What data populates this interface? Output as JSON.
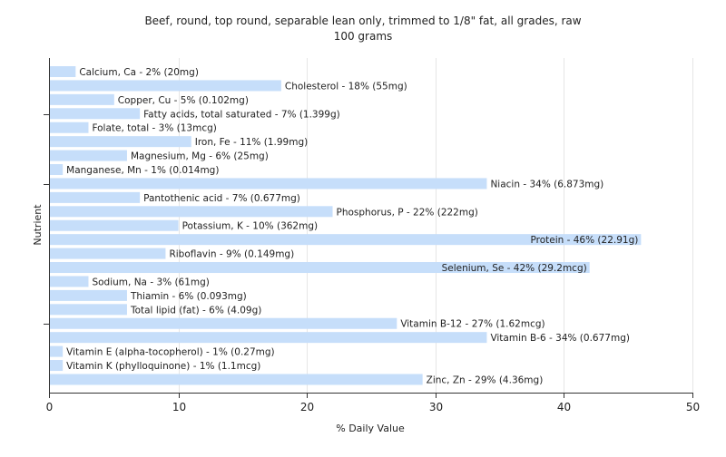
{
  "chart_data": {
    "type": "bar",
    "orientation": "horizontal",
    "title": "Beef, round, top round, separable lean only, trimmed to 1/8\" fat, all grades, raw",
    "subtitle": "100 grams",
    "xlabel": "% Daily Value",
    "ylabel": "Nutrient",
    "xlim": [
      0,
      50
    ],
    "x_ticks": [
      0,
      10,
      20,
      30,
      40,
      50
    ],
    "grid": true,
    "bar_color": "#c6defa",
    "categories": [
      "Calcium, Ca",
      "Cholesterol",
      "Copper, Cu",
      "Fatty acids, total saturated",
      "Folate, total",
      "Iron, Fe",
      "Magnesium, Mg",
      "Manganese, Mn",
      "Niacin",
      "Pantothenic acid",
      "Phosphorus, P",
      "Potassium, K",
      "Protein",
      "Riboflavin",
      "Selenium, Se",
      "Sodium, Na",
      "Thiamin",
      "Total lipid (fat)",
      "Vitamin B-12",
      "Vitamin B-6",
      "Vitamin E (alpha-tocopherol)",
      "Vitamin K (phylloquinone)",
      "Zinc, Zn"
    ],
    "values": [
      2,
      18,
      5,
      7,
      3,
      11,
      6,
      1,
      34,
      7,
      22,
      10,
      46,
      9,
      42,
      3,
      6,
      6,
      27,
      34,
      1,
      1,
      29
    ],
    "labels": [
      "Calcium, Ca - 2% (20mg)",
      "Cholesterol - 18% (55mg)",
      "Copper, Cu - 5% (0.102mg)",
      "Fatty acids, total saturated - 7% (1.399g)",
      "Folate, total - 3% (13mcg)",
      "Iron, Fe - 11% (1.99mg)",
      "Magnesium, Mg - 6% (25mg)",
      "Manganese, Mn - 1% (0.014mg)",
      "Niacin - 34% (6.873mg)",
      "Pantothenic acid - 7% (0.677mg)",
      "Phosphorus, P - 22% (222mg)",
      "Potassium, K - 10% (362mg)",
      "Protein - 46% (22.91g)",
      "Riboflavin - 9% (0.149mg)",
      "Selenium, Se - 42% (29.2mcg)",
      "Sodium, Na - 3% (61mg)",
      "Thiamin - 6% (0.093mg)",
      "Total lipid (fat) - 6% (4.09g)",
      "Vitamin B-12 - 27% (1.62mcg)",
      "Vitamin B-6 - 34% (0.677mg)",
      "Vitamin E (alpha-tocopherol) - 1% (0.27mg)",
      "Vitamin K (phylloquinone) - 1% (1.1mcg)",
      "Zinc, Zn - 29% (4.36mg)"
    ]
  }
}
